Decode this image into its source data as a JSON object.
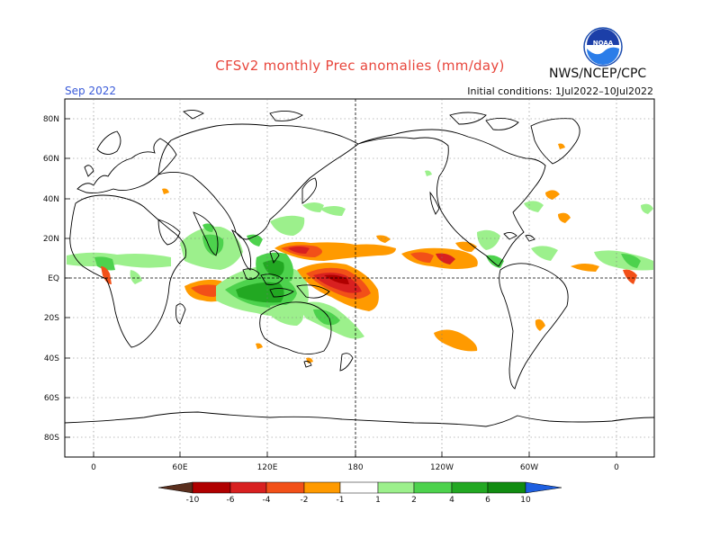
{
  "header": {
    "title": "CFSv2 monthly Prec anomalies (mm/day)",
    "month": "Sep 2022",
    "agency": "NWS/NCEP/CPC",
    "initial_conditions": "Initial conditions: 1Jul2022–10Jul2022",
    "logo_text": "NOAA"
  },
  "map": {
    "lat_labels": [
      "80N",
      "60N",
      "40N",
      "20N",
      "EQ",
      "20S",
      "40S",
      "60S",
      "80S"
    ],
    "lon_labels": [
      "0",
      "60E",
      "120E",
      "180",
      "120W",
      "60W",
      "0"
    ],
    "grid": "dotted",
    "meridian_dashed": "180"
  },
  "colorbar": {
    "labels": [
      "-10",
      "-6",
      "-4",
      "-2",
      "-1",
      "1",
      "2",
      "4",
      "6",
      "10"
    ],
    "colors": [
      "#5a2f1e",
      "#b00000",
      "#d82020",
      "#f25018",
      "#ff9a00",
      "#ffffff",
      "#9cf08c",
      "#4dd24d",
      "#22a822",
      "#118c11",
      "#1e5fe0"
    ]
  }
}
